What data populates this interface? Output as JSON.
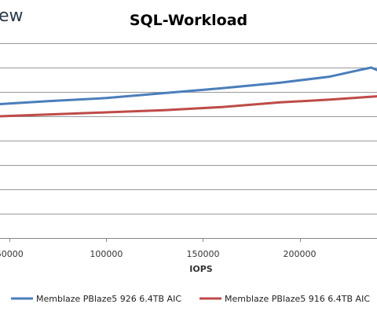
{
  "logo_text": "ew",
  "colors": {
    "series1": "#4a7ebb",
    "series2": "#be4b48",
    "grid": "#999999"
  },
  "chart_data": {
    "type": "line",
    "title": "SQL-Workload",
    "xlabel": "IOPS",
    "ylabel": "",
    "xlim": [
      45000,
      240000
    ],
    "ylim": [
      0,
      8
    ],
    "x_ticks": [
      50000,
      100000,
      150000,
      200000
    ],
    "x_tick_labels": [
      "50000",
      "100000",
      "150000",
      "200000"
    ],
    "y_gridlines": [
      1,
      2,
      3,
      4,
      5,
      6,
      7,
      8
    ],
    "grid": true,
    "legend_position": "bottom",
    "series": [
      {
        "name": "Memblaze PBlaze5 926 6.4TB AIC",
        "color_key": "series1",
        "x": [
          45000,
          70000,
          100000,
          130000,
          160000,
          190000,
          215000,
          230000,
          237000,
          240000
        ],
        "y": [
          5.5,
          5.62,
          5.75,
          5.95,
          6.15,
          6.38,
          6.62,
          6.88,
          7.0,
          6.9
        ]
      },
      {
        "name": "Memblaze PBlaze5 916 6.4TB AIC",
        "color_key": "series2",
        "x": [
          45000,
          70000,
          100000,
          130000,
          160000,
          190000,
          215000,
          240000
        ],
        "y": [
          5.0,
          5.07,
          5.16,
          5.25,
          5.38,
          5.57,
          5.68,
          5.82
        ]
      }
    ]
  }
}
